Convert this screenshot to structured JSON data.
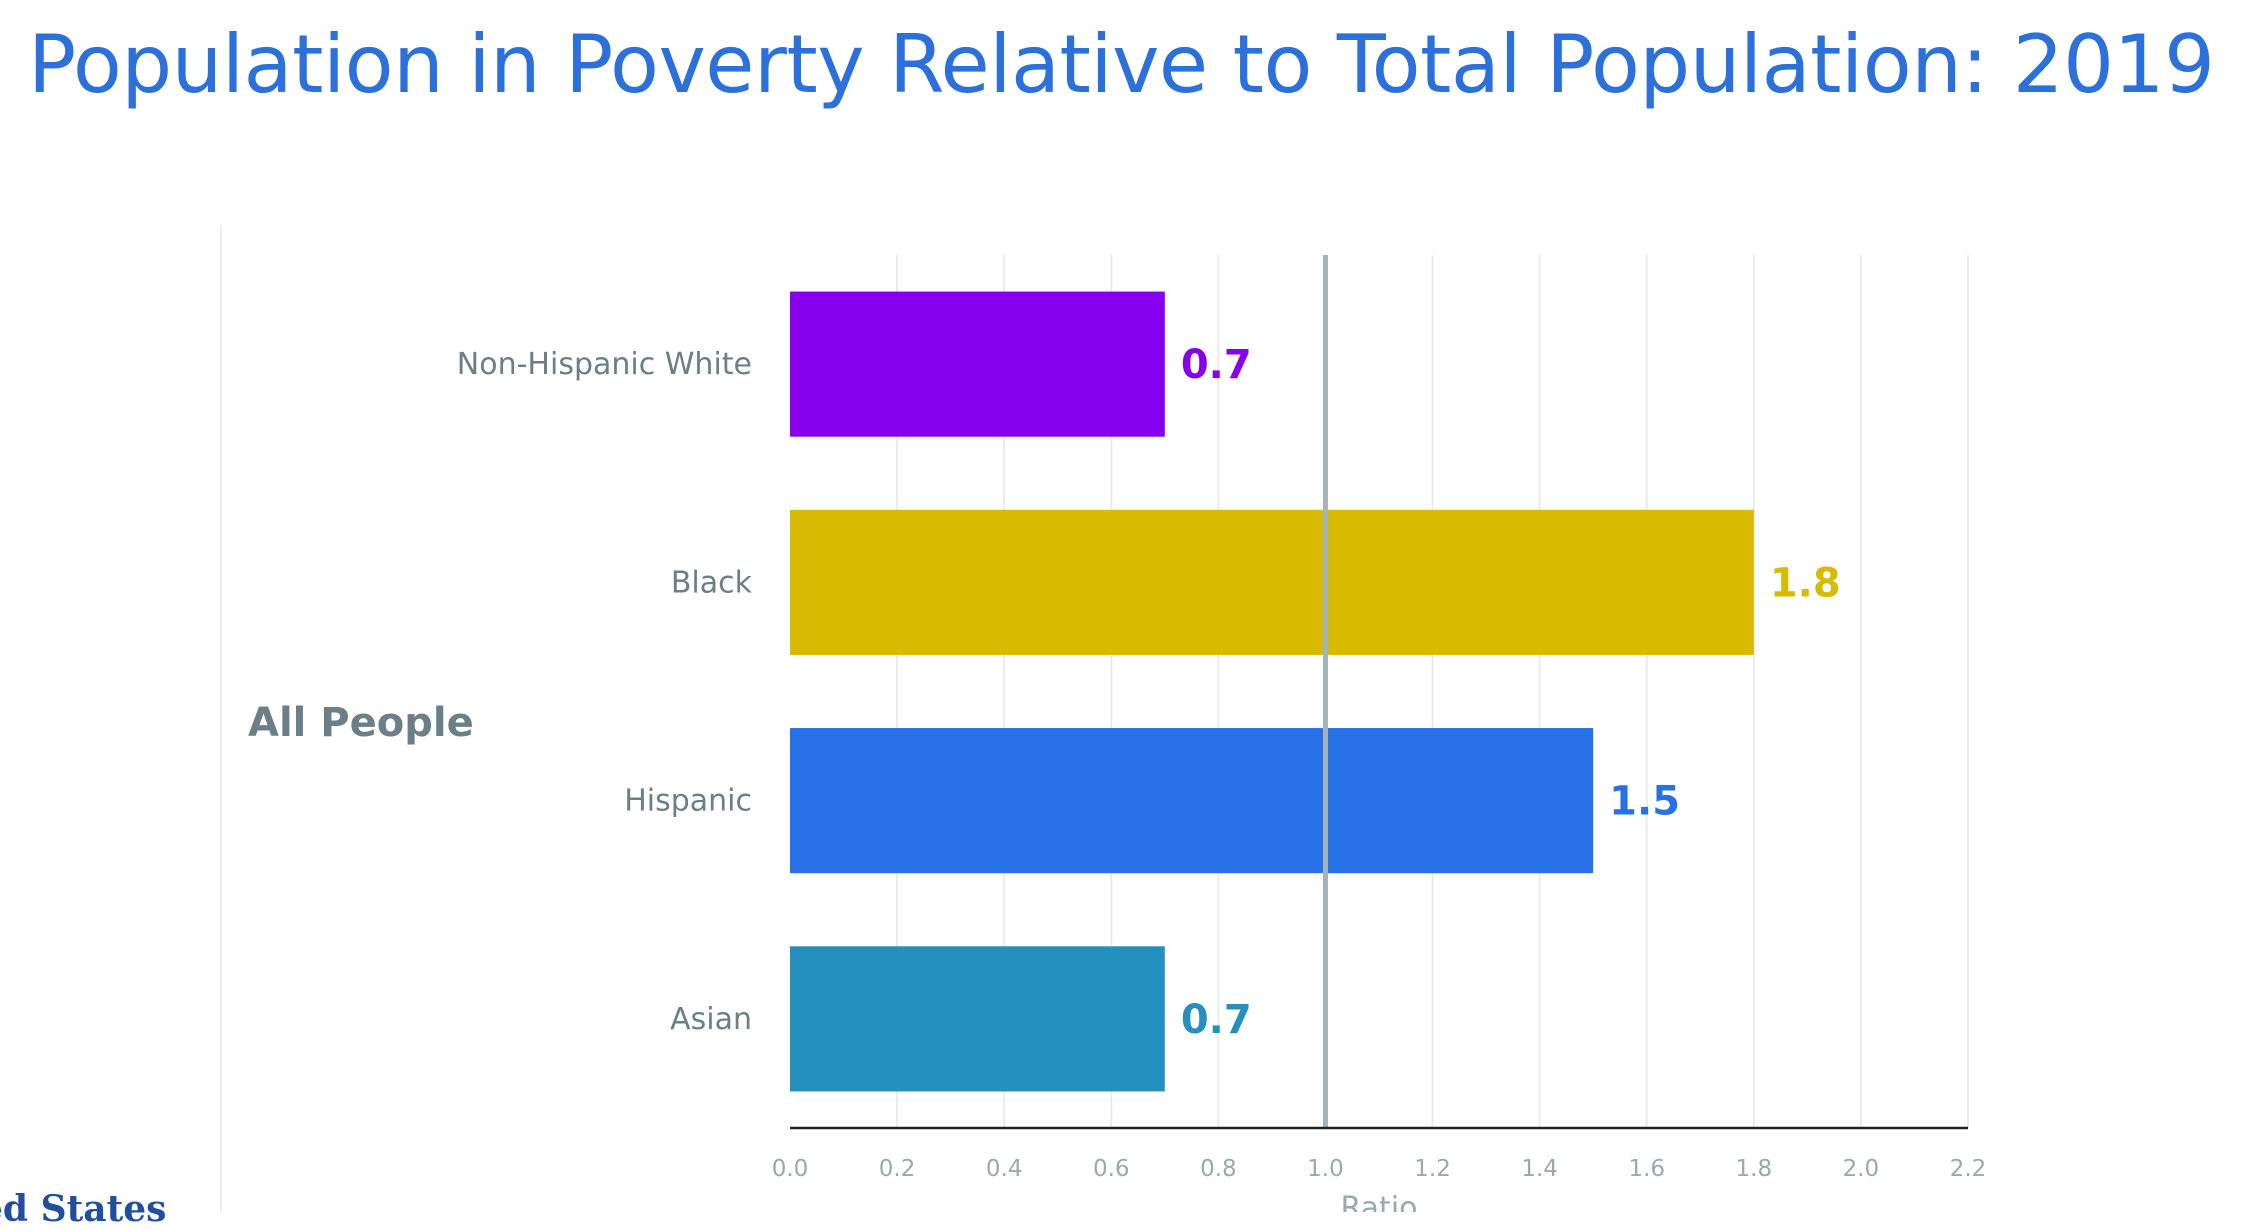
{
  "page": {
    "title": "Population in Poverty Relative to Total Population: 2019",
    "group_label": "All People",
    "footer_fragment": "ed States"
  },
  "chart_data": {
    "type": "bar",
    "orientation": "horizontal",
    "title": "Population in Poverty Relative to Total Population: 2019",
    "xlabel": "Ratio",
    "ylabel": "",
    "group": "All People",
    "categories": [
      "Non-Hispanic White",
      "Black",
      "Hispanic",
      "Asian"
    ],
    "values": [
      0.7,
      1.8,
      1.5,
      0.7
    ],
    "value_labels": [
      "0.7",
      "1.8",
      "1.5",
      "0.7"
    ],
    "colors": [
      "#8700EE",
      "#D8BB00",
      "#2870E6",
      "#2390C0"
    ],
    "xlim": [
      0,
      2.2
    ],
    "xticks": [
      0.0,
      0.2,
      0.4,
      0.6,
      0.8,
      1.0,
      1.2,
      1.4,
      1.6,
      1.8,
      2.0,
      2.2
    ],
    "xtick_labels": [
      "0.0",
      "0.2",
      "0.4",
      "0.6",
      "0.8",
      "1.0",
      "1.2",
      "1.4",
      "1.6",
      "1.8",
      "2.0",
      "2.2"
    ],
    "reference_line": 1.0,
    "reference_line_color": "#a3b3ba",
    "grid": true
  }
}
